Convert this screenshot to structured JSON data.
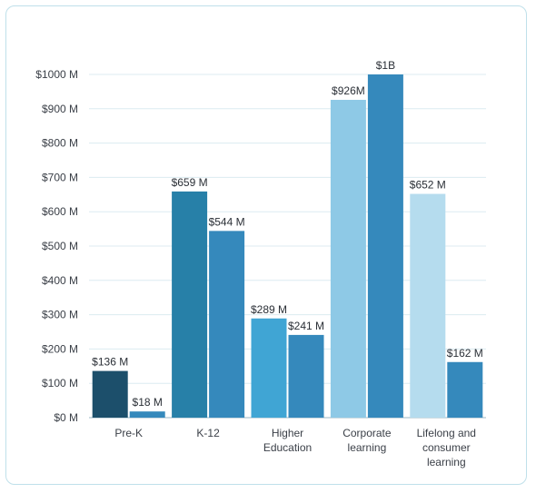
{
  "chart_data": {
    "type": "bar",
    "title": "",
    "xlabel": "",
    "ylabel": "",
    "ylim": [
      0,
      1000
    ],
    "yticks": [
      0,
      100,
      200,
      300,
      400,
      500,
      600,
      700,
      800,
      900,
      1000
    ],
    "ytick_labels": [
      "$0 M",
      "$100 M",
      "$200 M",
      "$300 M",
      "$400 M",
      "$500 M",
      "$600 M",
      "$700 M",
      "$800 M",
      "$900 M",
      "$1000 M"
    ],
    "grid": true,
    "legend": "none",
    "categories": [
      [
        "Pre-K"
      ],
      [
        "K-12"
      ],
      [
        "Higher",
        "Education"
      ],
      [
        "Corporate",
        "learning"
      ],
      [
        "Lifelong and",
        "consumer",
        "learning"
      ]
    ],
    "series": [
      {
        "values": [
          136,
          659,
          289,
          926,
          652
        ],
        "labels": [
          "$136 M",
          "$659 M",
          "$289 M",
          "$926M",
          "$652 M"
        ],
        "colors": [
          "#1c4f6b",
          "#2780a8",
          "#40a5d4",
          "#8ec9e6",
          "#b5dcee"
        ]
      },
      {
        "values": [
          18,
          544,
          241,
          1000,
          162
        ],
        "labels": [
          "$18 M",
          "$544 M",
          "$241 M",
          "$1B",
          "$162 M"
        ],
        "colors": [
          "#3589bc",
          "#3589bc",
          "#3589bc",
          "#3589bc",
          "#3589bc"
        ]
      }
    ],
    "colors": {
      "grid": "#dcebf1",
      "axis": "#9bb7c4",
      "text": "#3a3f47"
    }
  }
}
